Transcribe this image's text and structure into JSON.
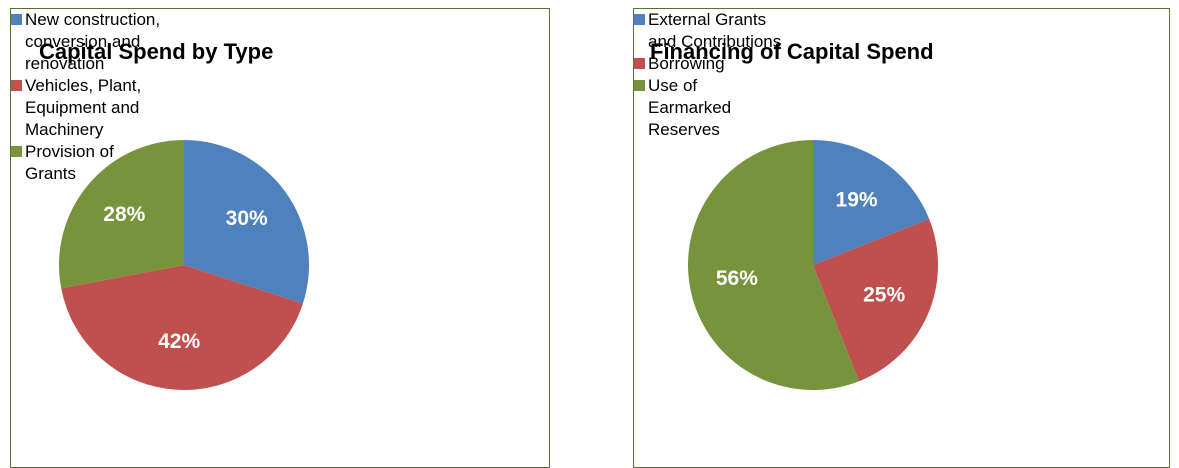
{
  "chart_data": [
    {
      "type": "pie",
      "title": "Capital Spend by Type",
      "categories": [
        "New construction, conversion and renovation",
        "Vehicles, Plant, Equipment and Machinery",
        "Provision of Grants"
      ],
      "values": [
        30,
        42,
        28
      ],
      "value_labels": [
        "30%",
        "42%",
        "28%"
      ],
      "colors": [
        "#4f81bd",
        "#c0504d",
        "#77933c"
      ],
      "legend": "right"
    },
    {
      "type": "pie",
      "title": "Financing of Capital Spend",
      "categories": [
        "External Grants and Contributions",
        "Borrowing",
        "Use of Earmarked Reserves"
      ],
      "values": [
        19,
        25,
        56
      ],
      "value_labels": [
        "19%",
        "25%",
        "56%"
      ],
      "colors": [
        "#4f81bd",
        "#c0504d",
        "#77933c"
      ],
      "legend": "right"
    }
  ]
}
